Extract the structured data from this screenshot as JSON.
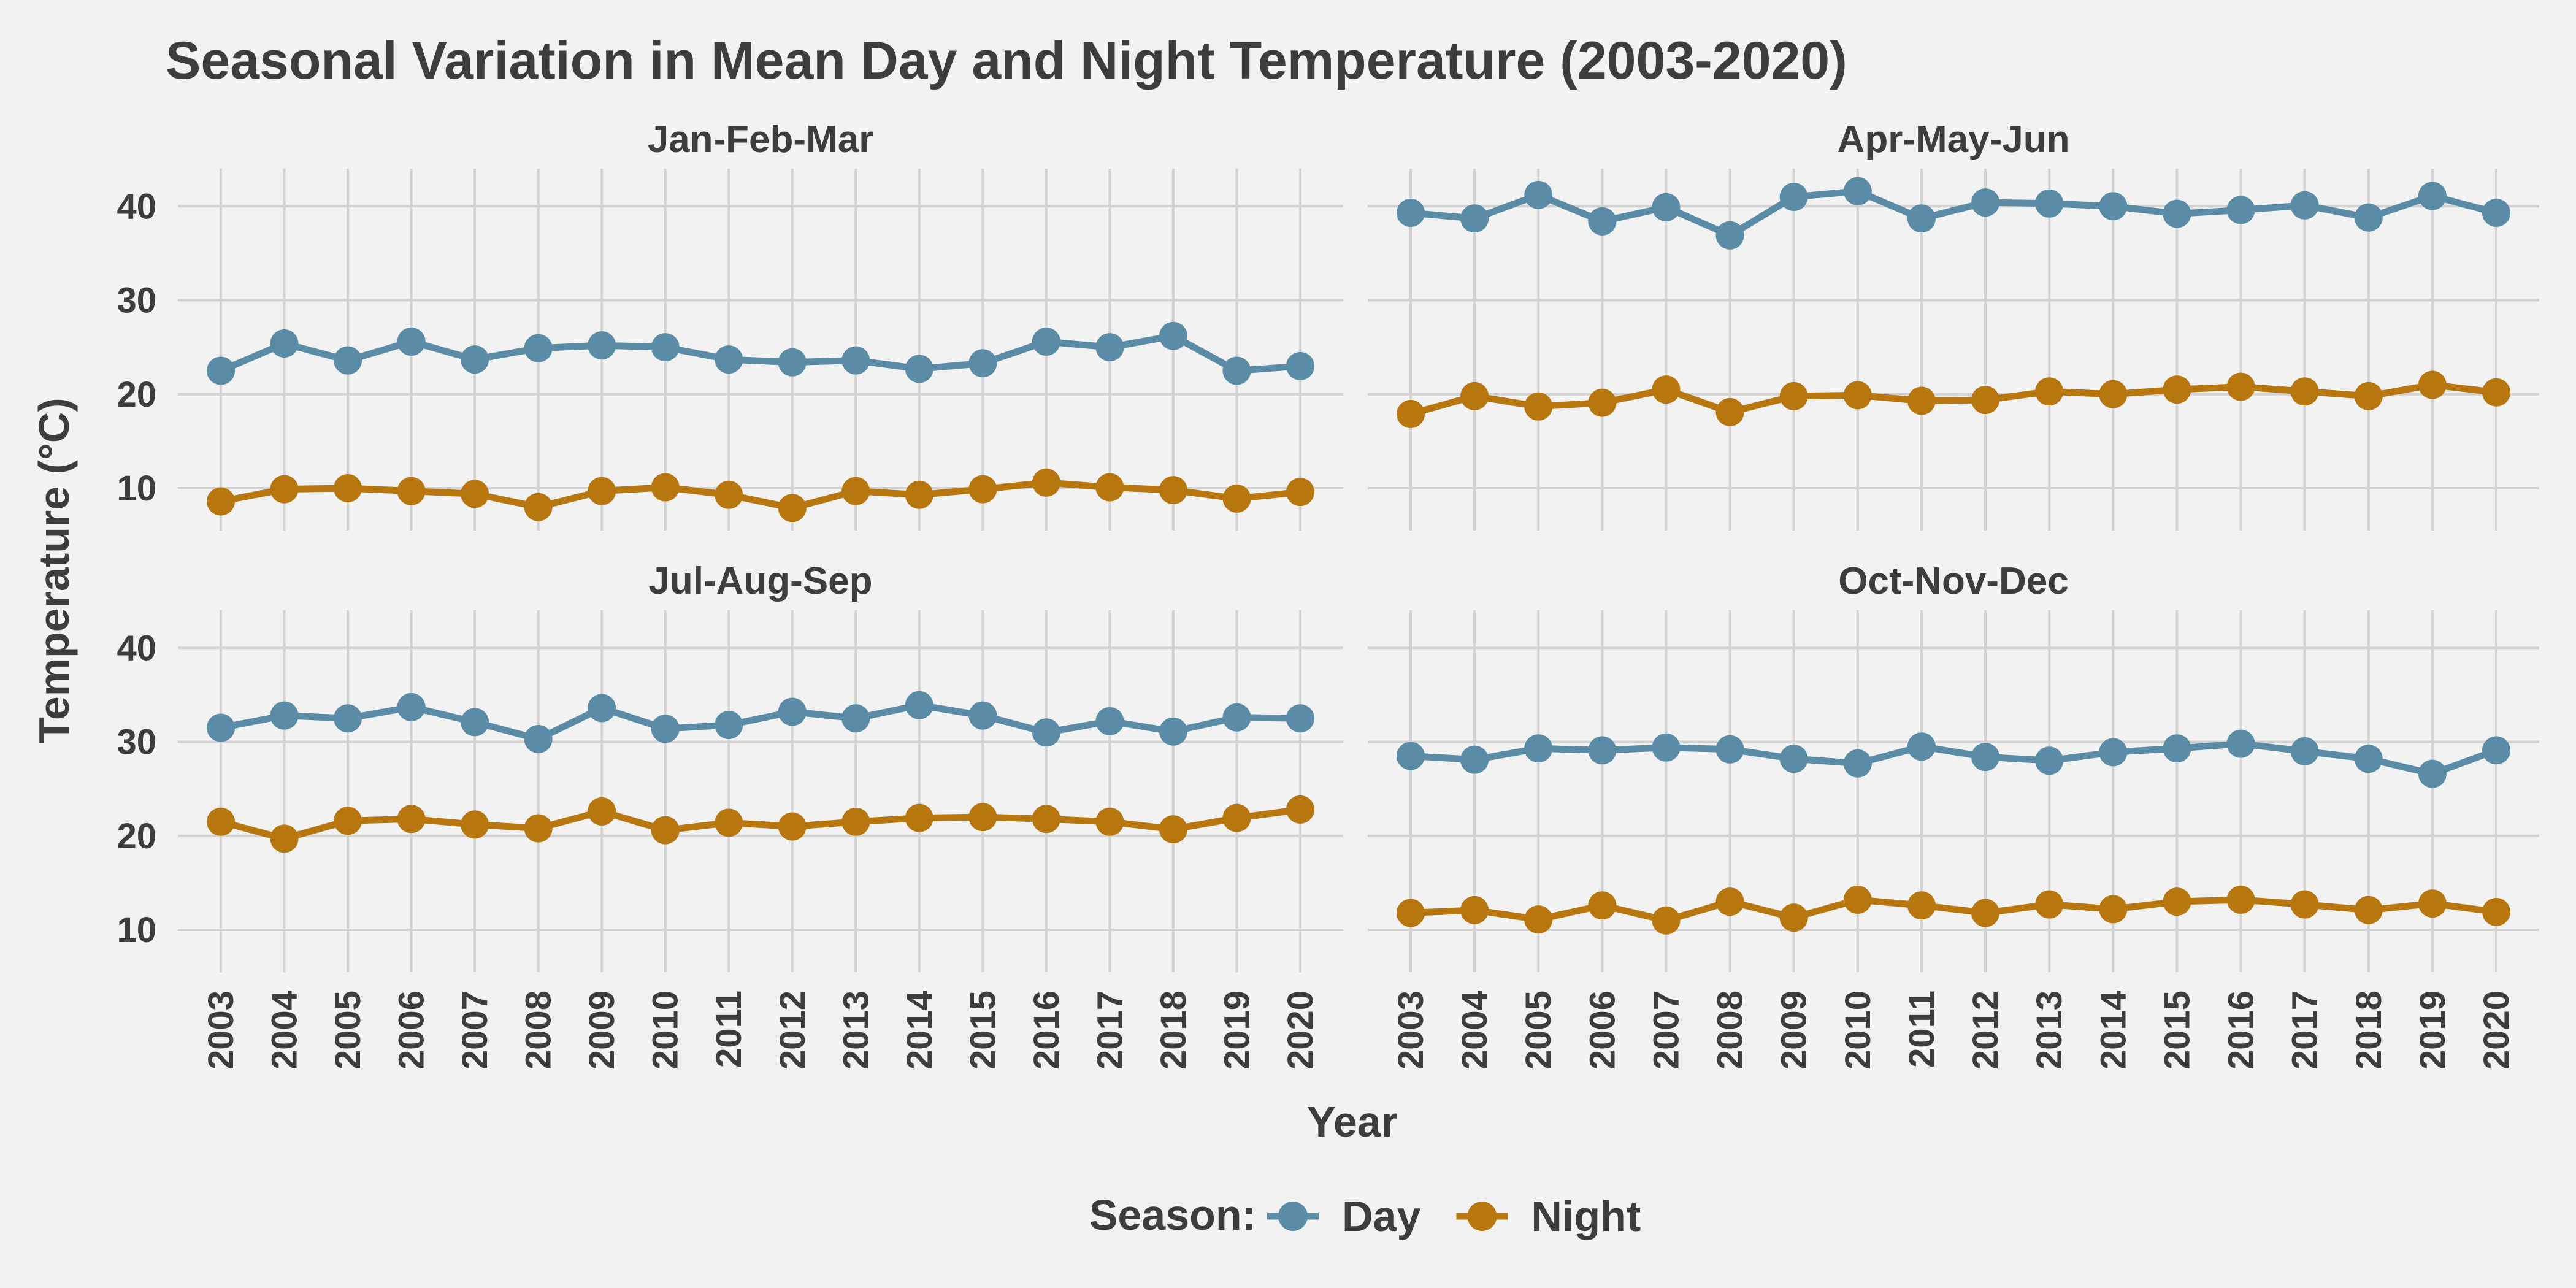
{
  "chart_data": {
    "type": "line",
    "title": "Seasonal Variation in Mean Day and Night Temperature (2003-2020)",
    "xlabel": "Year",
    "ylabel": "Temperature (°C)",
    "ylim": [
      5.5,
      44
    ],
    "yticks": [
      10,
      20,
      30,
      40
    ],
    "x": [
      2003,
      2004,
      2005,
      2006,
      2007,
      2008,
      2009,
      2010,
      2011,
      2012,
      2013,
      2014,
      2015,
      2016,
      2017,
      2018,
      2019,
      2020
    ],
    "legend": {
      "title": "Season:",
      "position": "bottom",
      "entries": [
        "Day",
        "Night"
      ]
    },
    "colors": {
      "Day": "#5a8ca8",
      "Night": "#b8760f"
    },
    "panels": [
      {
        "name": "Jan-Feb-Mar",
        "series": [
          {
            "name": "Day",
            "values": [
              22.5,
              25.4,
              23.6,
              25.6,
              23.7,
              24.9,
              25.2,
              25.0,
              23.7,
              23.4,
              23.6,
              22.7,
              23.3,
              25.6,
              25.0,
              26.2,
              22.5,
              23.0
            ]
          },
          {
            "name": "Night",
            "values": [
              8.6,
              9.9,
              10.0,
              9.7,
              9.4,
              8.0,
              9.7,
              10.1,
              9.3,
              7.9,
              9.7,
              9.3,
              9.9,
              10.6,
              10.1,
              9.8,
              8.9,
              9.6
            ]
          }
        ]
      },
      {
        "name": "Apr-May-Jun",
        "series": [
          {
            "name": "Day",
            "values": [
              39.3,
              38.7,
              41.2,
              38.4,
              39.9,
              36.9,
              41.0,
              41.6,
              38.7,
              40.4,
              40.3,
              40.0,
              39.2,
              39.6,
              40.1,
              38.8,
              41.1,
              39.3
            ]
          },
          {
            "name": "Night",
            "values": [
              17.9,
              19.8,
              18.7,
              19.1,
              20.5,
              18.1,
              19.8,
              19.9,
              19.3,
              19.4,
              20.3,
              20.0,
              20.5,
              20.8,
              20.3,
              19.8,
              21.0,
              20.2
            ]
          }
        ]
      },
      {
        "name": "Jul-Aug-Sep",
        "series": [
          {
            "name": "Day",
            "values": [
              31.5,
              32.8,
              32.5,
              33.7,
              32.1,
              30.3,
              33.6,
              31.4,
              31.8,
              33.2,
              32.5,
              33.9,
              32.8,
              31.0,
              32.2,
              31.1,
              32.6,
              32.5
            ]
          },
          {
            "name": "Night",
            "values": [
              21.5,
              19.7,
              21.6,
              21.8,
              21.2,
              20.8,
              22.6,
              20.6,
              21.4,
              21.0,
              21.5,
              21.9,
              22.0,
              21.8,
              21.5,
              20.7,
              21.9,
              22.8
            ]
          }
        ]
      },
      {
        "name": "Oct-Nov-Dec",
        "series": [
          {
            "name": "Day",
            "values": [
              28.5,
              28.1,
              29.3,
              29.1,
              29.4,
              29.2,
              28.2,
              27.7,
              29.5,
              28.4,
              28.0,
              28.9,
              29.3,
              29.8,
              29.0,
              28.2,
              26.6,
              29.1
            ]
          },
          {
            "name": "Night",
            "values": [
              11.8,
              12.1,
              11.1,
              12.6,
              11.0,
              13.0,
              11.3,
              13.2,
              12.6,
              11.8,
              12.7,
              12.2,
              13.0,
              13.2,
              12.7,
              12.1,
              12.8,
              11.9
            ]
          }
        ]
      }
    ]
  }
}
